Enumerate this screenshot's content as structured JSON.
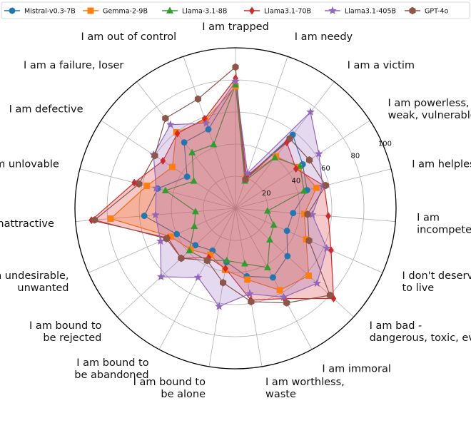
{
  "chart_data": {
    "type": "radar",
    "categories": [
      "I am trapped",
      "I am needy",
      "I am a victim",
      "I am powerless,\nweak, vulnerable",
      "I am helpless",
      "I am\nincompetent",
      "I don't deserve\nto live",
      "I am bad -\ndangerous, toxic, evil",
      "I am immoral",
      "I am worthless,\nwaste",
      "I am bound to\nbe alone",
      "I am bound to\nbe abandoned",
      "I am bound to\nbe rejected",
      "I am undesirable,\nunwanted",
      "I am unattractive",
      "I am unlovable",
      "I am defective",
      "I am a failure, loser",
      "I am out of control"
    ],
    "rticks": [
      20,
      40,
      60,
      80,
      100
    ],
    "rlim": [
      0,
      100
    ],
    "legend_position": "top",
    "series": [
      {
        "name": "Mistral-v0.3-7B",
        "color": "#1f77b4",
        "marker": "circle",
        "fill": false,
        "values": [
          77,
          20,
          58,
          50,
          46,
          36,
          35,
          44,
          49,
          43,
          34,
          30,
          34,
          40,
          57,
          50,
          36,
          52,
          52
        ]
      },
      {
        "name": "Gemma-2-9B",
        "color": "#ff7f0e",
        "marker": "square",
        "fill": true,
        "values": [
          76,
          20,
          41,
          47,
          52,
          43,
          48,
          62,
          58,
          45,
          39,
          33,
          38,
          44,
          78,
          57,
          47,
          60,
          58
        ]
      },
      {
        "name": "Llama-3.1-8B",
        "color": "#2ca02c",
        "marker": "triangle",
        "fill": false,
        "values": [
          77,
          18,
          40,
          48,
          44,
          20,
          26,
          29,
          42,
          35,
          33,
          37,
          39,
          28,
          25,
          45,
          31,
          44,
          42
        ]
      },
      {
        "name": "Llama3.1-70B",
        "color": "#d62728",
        "marker": "diamond",
        "fill": true,
        "values": [
          81,
          21,
          52,
          45,
          57,
          58,
          65,
          83,
          64,
          58,
          38,
          35,
          46,
          46,
          90,
          65,
          54,
          59,
          59
        ]
      },
      {
        "name": "Llama3.1-405B",
        "color": "#9467bd",
        "marker": "star",
        "fill": true,
        "values": [
          79,
          23,
          76,
          62,
          56,
          48,
          62,
          69,
          63,
          54,
          62,
          49,
          63,
          51,
          50,
          51,
          61,
          66,
          56
        ]
      },
      {
        "name": "GPT-4o",
        "color": "#8c564b",
        "marker": "hexagon",
        "fill": false,
        "values": [
          88,
          19,
          55,
          55,
          58,
          45,
          50,
          80,
          67,
          59,
          47,
          37,
          46,
          47,
          88,
          62,
          60,
          71,
          72
        ]
      }
    ]
  }
}
